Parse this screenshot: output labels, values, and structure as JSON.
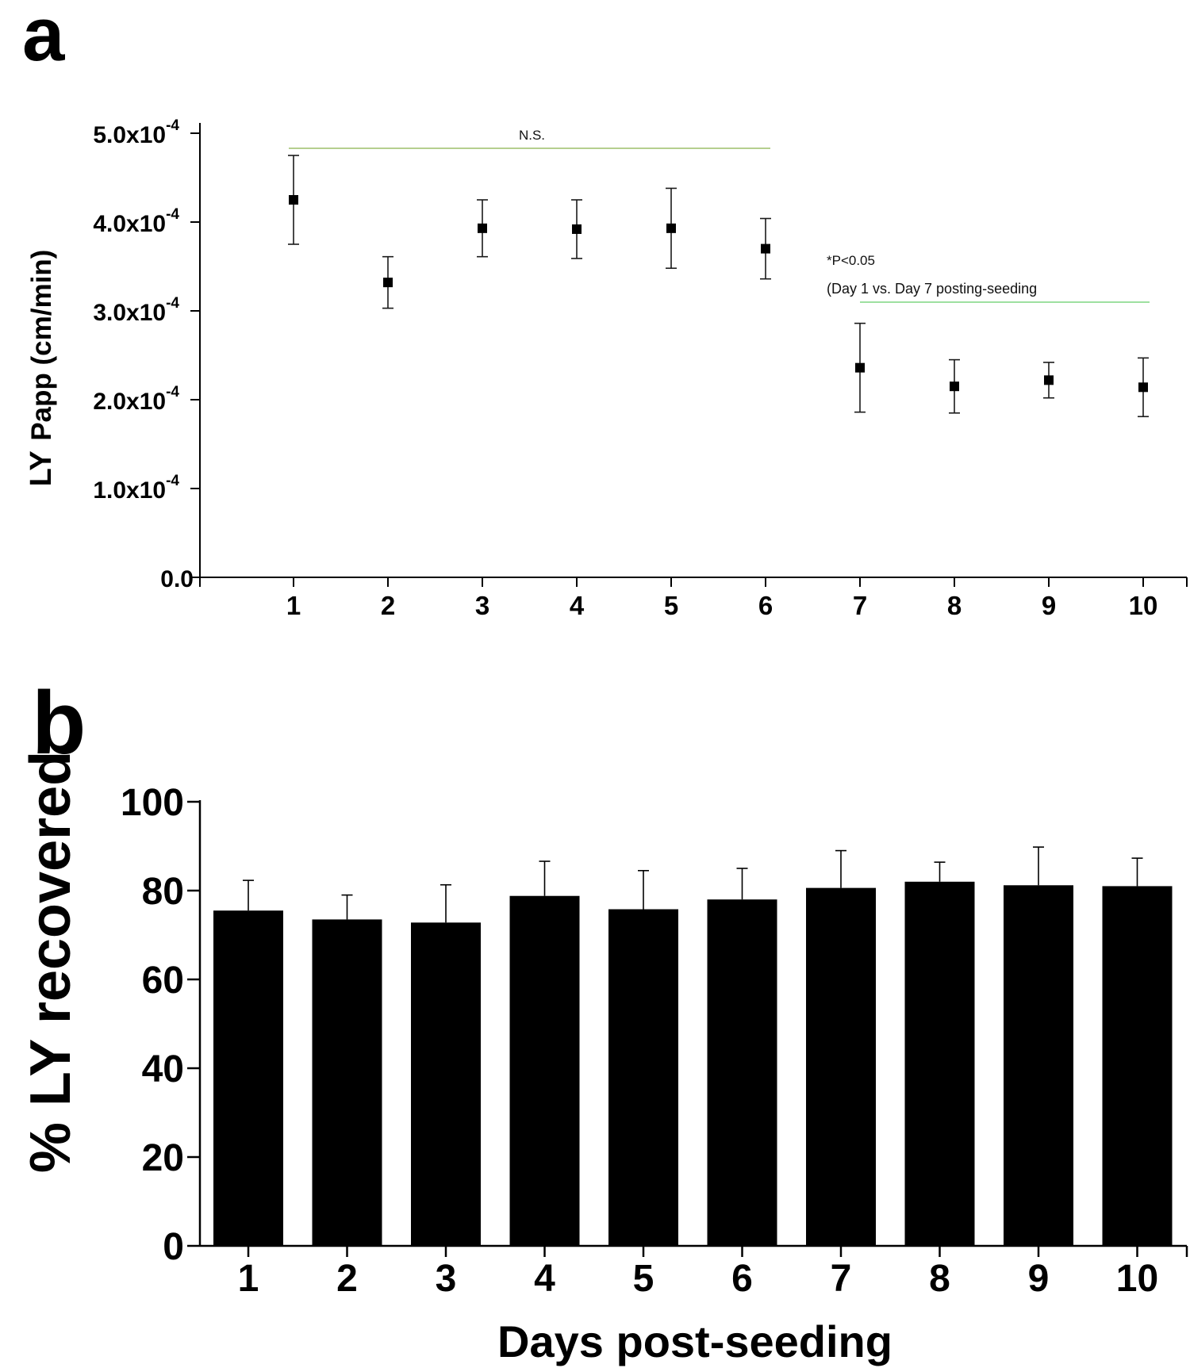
{
  "panels": {
    "a": {
      "letter": "a"
    },
    "b": {
      "letter": "b"
    }
  },
  "chart_data": [
    {
      "type": "scatter",
      "panel": "a",
      "title": "",
      "xlabel": "",
      "ylabel_main": "LY",
      "ylabel_rest": "Papp (cm/min)",
      "ylim": [
        0,
        0.0005
      ],
      "xlim": [
        0,
        10.5
      ],
      "categories": [
        "1",
        "2",
        "3",
        "4",
        "5",
        "6",
        "7",
        "8",
        "9",
        "10"
      ],
      "x": [
        1,
        2,
        3,
        4,
        5,
        6,
        7,
        8,
        9,
        10
      ],
      "y": [
        0.000425,
        0.000332,
        0.000393,
        0.000392,
        0.000393,
        0.00037,
        0.000236,
        0.000215,
        0.000222,
        0.000214
      ],
      "err": [
        5e-05,
        2.9e-05,
        3.2e-05,
        3.3e-05,
        4.5e-05,
        3.4e-05,
        5e-05,
        3e-05,
        2e-05,
        3.3e-05
      ],
      "yticks": [
        {
          "value": 0,
          "mantissa": "0.0",
          "exponent": ""
        },
        {
          "value": 0.0001,
          "mantissa": "1.0x10",
          "exponent": "-4"
        },
        {
          "value": 0.0002,
          "mantissa": "2.0x10",
          "exponent": "-4"
        },
        {
          "value": 0.0003,
          "mantissa": "3.0x10",
          "exponent": "-4"
        },
        {
          "value": 0.0004,
          "mantissa": "4.0x10",
          "exponent": "-4"
        },
        {
          "value": 0.0005,
          "mantissa": "5.0x10",
          "exponent": "-4"
        }
      ],
      "annotations": {
        "ns_label": "N.S.",
        "ns_span": [
          1,
          6
        ],
        "sig_label": "*P<0.05",
        "sig_note": "(Day 1 vs. Day 7 posting-seeding",
        "sig_span": [
          7,
          10
        ]
      },
      "grid": false,
      "colors": {
        "marker": "#000000",
        "errorbar": "#1a1a1a",
        "bracket": "#b5cf8f",
        "bracket2": "#9ee0a0"
      }
    },
    {
      "type": "bar",
      "panel": "b",
      "title": "",
      "xlabel": "Days post-seeding",
      "ylabel": "% LY recovered",
      "ylim": [
        0,
        100
      ],
      "categories": [
        "1",
        "2",
        "3",
        "4",
        "5",
        "6",
        "7",
        "8",
        "9",
        "10"
      ],
      "values": [
        75.5,
        73.5,
        72.8,
        78.8,
        75.8,
        78.0,
        80.6,
        82.0,
        81.2,
        81.0
      ],
      "err": [
        6.8,
        5.5,
        8.5,
        7.8,
        8.7,
        7.0,
        8.4,
        4.4,
        8.6,
        6.3
      ],
      "yticks": [
        "0",
        "20",
        "40",
        "60",
        "80",
        "100"
      ],
      "grid": false,
      "colors": {
        "bar": "#000000"
      }
    }
  ]
}
